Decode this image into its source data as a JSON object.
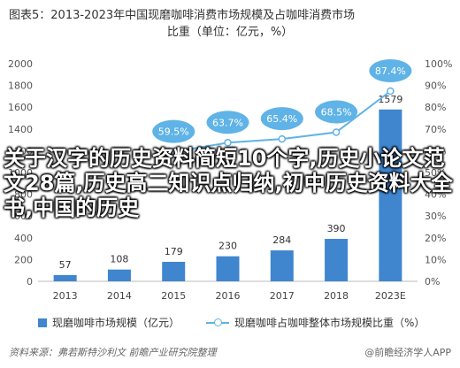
{
  "header": {
    "title_line1": "图表5：2013-2023年中国现磨咖啡消费市场规模及占咖啡消费市场",
    "title_line2": "比重（单位：亿元，%）"
  },
  "chart_data": {
    "type": "bar",
    "categories": [
      "2013",
      "2014",
      "2015",
      "2016",
      "2017",
      "2018",
      "2023E"
    ],
    "series": [
      {
        "name": "现磨咖啡市场规模（亿元）",
        "type": "bar",
        "axis": "left",
        "values": [
          57,
          108,
          179,
          230,
          284,
          390,
          1579
        ]
      },
      {
        "name": "现磨咖啡占咖啡整体市场规模比重（%）",
        "type": "line",
        "axis": "right",
        "values": [
          null,
          null,
          59.5,
          63.7,
          65.4,
          68.5,
          87.4
        ],
        "labels": [
          "",
          "",
          "59.5%",
          "63.7%",
          "65.4%",
          "68.5%",
          "87.4%"
        ]
      }
    ],
    "left_axis": {
      "ticks": [
        "0",
        "200",
        "400",
        "600",
        "800",
        "1000",
        "1200",
        "1400",
        "1600",
        "1800",
        "2000"
      ],
      "ylim": [
        0,
        2000
      ]
    },
    "right_axis": {
      "ticks": [
        "0%",
        "10%",
        "20%",
        "30%",
        "40%",
        "50%",
        "60%",
        "70%",
        "80%",
        "90%",
        "100%"
      ],
      "ylim": [
        0,
        100
      ]
    },
    "colors": {
      "bar": "#3f86cf",
      "line": "#5fb3e6",
      "label_bg": "#5fb3e6"
    }
  },
  "overlay_text": "关于汉字的历史资料简短10个字,历史小论文范文28篇,历史高二知识点归纳,初中历史资料大全书,中国的历史",
  "footer": {
    "source": "资料来源：弗若斯特沙利文 前瞻产业研究院整理",
    "brand": "@前瞻经济学人APP"
  }
}
